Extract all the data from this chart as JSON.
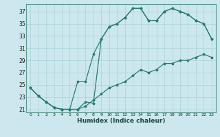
{
  "xlabel": "Humidex (Indice chaleur)",
  "bg_color": "#cce8ee",
  "grid_color": "#aad0d8",
  "line_color": "#2a7d6e",
  "xlim": [
    -0.5,
    23.5
  ],
  "ylim": [
    20.5,
    38.2
  ],
  "xticks": [
    0,
    1,
    2,
    3,
    4,
    5,
    6,
    7,
    8,
    9,
    10,
    11,
    12,
    13,
    14,
    15,
    16,
    17,
    18,
    19,
    20,
    21,
    22,
    23
  ],
  "yticks": [
    21,
    23,
    25,
    27,
    29,
    31,
    33,
    35,
    37
  ],
  "line1_x": [
    0,
    1,
    2,
    3,
    4,
    5,
    6,
    7,
    8,
    9,
    10,
    11,
    12,
    13,
    14,
    15,
    16,
    17,
    18,
    19,
    20,
    21,
    22,
    23
  ],
  "line1_y": [
    24.5,
    23.2,
    22.2,
    21.3,
    21.0,
    21.0,
    21.0,
    22.2,
    22.0,
    32.5,
    34.5,
    35.0,
    36.0,
    37.5,
    37.5,
    35.5,
    35.5,
    37.0,
    37.5,
    37.0,
    36.5,
    35.5,
    35.0,
    32.5
  ],
  "line2_x": [
    0,
    1,
    2,
    3,
    4,
    5,
    6,
    7,
    8,
    9,
    10,
    11,
    12,
    13,
    14,
    15,
    16,
    17,
    18,
    19,
    20,
    21,
    22,
    23
  ],
  "line2_y": [
    24.5,
    23.2,
    22.2,
    21.3,
    21.0,
    21.0,
    25.5,
    25.5,
    30.0,
    32.5,
    34.5,
    35.0,
    36.0,
    37.5,
    37.5,
    35.5,
    35.5,
    37.0,
    37.5,
    37.0,
    36.5,
    35.5,
    35.0,
    32.5
  ],
  "line3_x": [
    0,
    1,
    2,
    3,
    4,
    5,
    6,
    7,
    8,
    9,
    10,
    11,
    12,
    13,
    14,
    15,
    16,
    17,
    18,
    19,
    20,
    21,
    22,
    23
  ],
  "line3_y": [
    24.5,
    23.2,
    22.2,
    21.3,
    21.0,
    21.0,
    21.0,
    21.5,
    22.5,
    23.5,
    24.5,
    25.0,
    25.5,
    26.5,
    27.5,
    27.0,
    27.5,
    28.5,
    28.5,
    29.0,
    29.0,
    29.5,
    30.0,
    29.5
  ]
}
